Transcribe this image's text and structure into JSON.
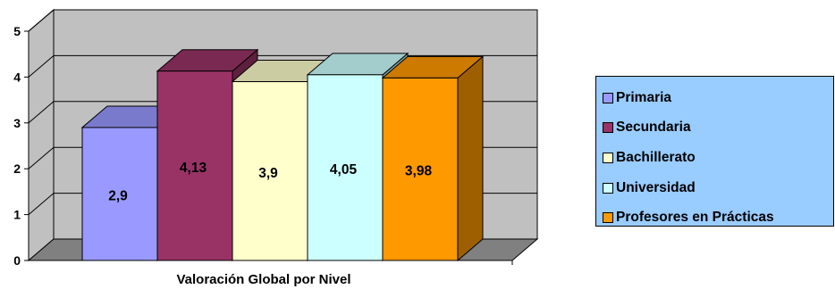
{
  "chart_data": {
    "type": "bar",
    "title": "",
    "xlabel": "Valoración Global por Nivel",
    "ylabel": "",
    "ylim": [
      0,
      5
    ],
    "yticks": [
      "0",
      "1",
      "2",
      "3",
      "4",
      "5"
    ],
    "grid": true,
    "legend_position": "right",
    "three_d": true,
    "series": [
      {
        "name": "Primaria",
        "values": [
          2.9
        ],
        "label": "2,9",
        "color": "#9999FF"
      },
      {
        "name": "Secundaria",
        "values": [
          4.13
        ],
        "label": "4,13",
        "color": "#993366"
      },
      {
        "name": "Bachillerato",
        "values": [
          3.9
        ],
        "label": "3,9",
        "color": "#FFFFCC"
      },
      {
        "name": "Universidad",
        "values": [
          4.05
        ],
        "label": "4,05",
        "color": "#CCFFFF"
      },
      {
        "name": "Profesores en Prácticas",
        "values": [
          3.98
        ],
        "label": "3,98",
        "color": "#FF9900"
      }
    ]
  },
  "colors": {
    "wall": "#C0C0C0",
    "floor": "#808080",
    "legend_background": "#99CCFF"
  }
}
